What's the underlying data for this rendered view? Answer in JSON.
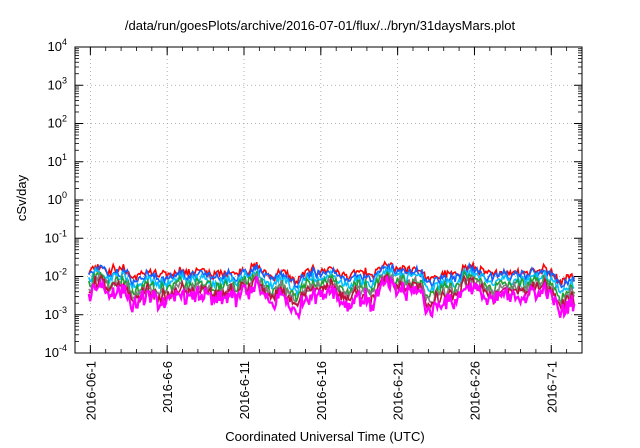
{
  "chart_data": {
    "type": "line",
    "title": "/data/run/goesPlots/archive/2016-07-01/flux/../bryn/31daysMars.plot",
    "xlabel": "Coordinated Universal Time (UTC)",
    "ylabel": "cSv/day",
    "yscale": "log",
    "ylim": [
      0.0001,
      10000
    ],
    "yticks": [
      {
        "base": "10",
        "exp": "-4"
      },
      {
        "base": "10",
        "exp": "-3"
      },
      {
        "base": "10",
        "exp": "-2"
      },
      {
        "base": "10",
        "exp": "-1"
      },
      {
        "base": "10",
        "exp": "0"
      },
      {
        "base": "10",
        "exp": "1"
      },
      {
        "base": "10",
        "exp": "2"
      },
      {
        "base": "10",
        "exp": "3"
      },
      {
        "base": "10",
        "exp": "4"
      }
    ],
    "xlim": [
      "2016-05-31",
      "2016-07-03"
    ],
    "xticks": [
      "2016-06-1",
      "2016-6-6",
      "2016-6-11",
      "2016-6-16",
      "2016-6-21",
      "2016-6-26",
      "2016-7-1"
    ],
    "grid": true,
    "legend": "none",
    "series": [
      {
        "color": "#ff0000",
        "level": 0.0125,
        "noise": 0.1
      },
      {
        "color": "#1060ff",
        "level": 0.0105,
        "noise": 0.1
      },
      {
        "color": "#00c0ff",
        "level": 0.0078,
        "noise": 0.1
      },
      {
        "color": "#20a030",
        "level": 0.0058,
        "noise": 0.12
      },
      {
        "color": "#808080",
        "level": 0.0046,
        "noise": 0.12
      },
      {
        "color": "#c0103c",
        "level": 0.0038,
        "noise": 0.13
      },
      {
        "color": "#ff00ff",
        "level": 0.0028,
        "noise": 0.18
      }
    ]
  }
}
